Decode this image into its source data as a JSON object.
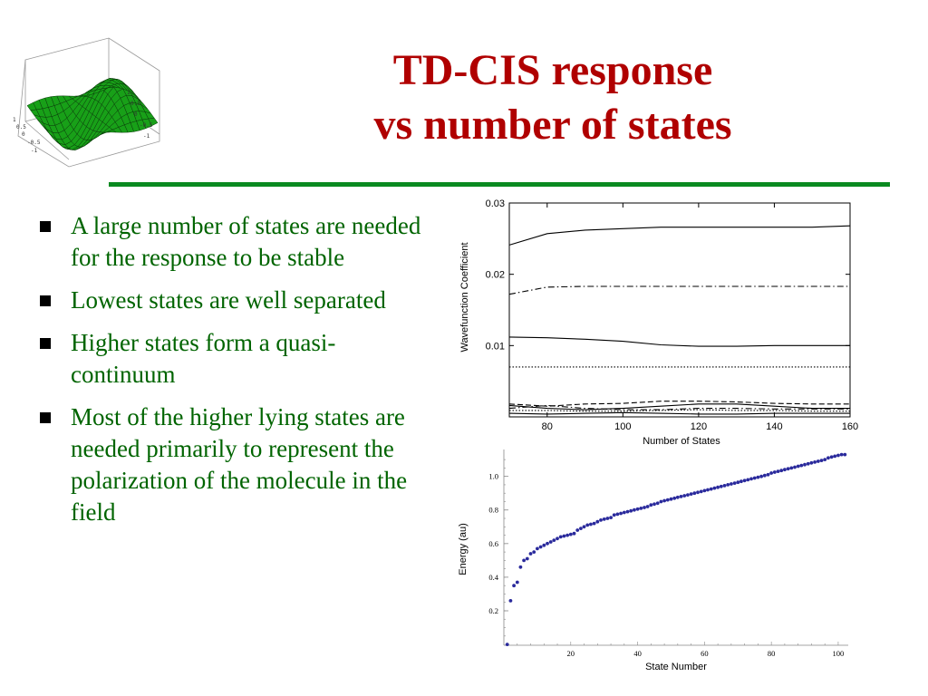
{
  "title": {
    "line1": "TD-CIS response",
    "line2": "vs number of states"
  },
  "bullets": [
    "A large number of states are needed for the response to be stable",
    "Lowest states are well separated",
    "Higher states form a quasi-continuum",
    "Most of the higher lying states are needed primarily to represent the polarization of the molecule in the field"
  ],
  "logo": {
    "ticks": [
      "1",
      "0.5",
      "0",
      "-0.5",
      "-1"
    ],
    "color": "#18a018"
  },
  "chart_data": [
    {
      "type": "line",
      "xlabel": "Number  of  States",
      "ylabel": "Wavefunction Coefficient",
      "xlim": [
        70,
        160
      ],
      "ylim": [
        0,
        0.03
      ],
      "x_ticks": [
        "80",
        "100",
        "120",
        "140",
        "160"
      ],
      "y_ticks": [
        "0.01",
        "0.02",
        "0.03"
      ],
      "x_tick_values": [
        80,
        100,
        120,
        140,
        160
      ],
      "y_tick_values": [
        0.01,
        0.02,
        0.03
      ],
      "x": [
        70,
        80,
        90,
        100,
        110,
        120,
        130,
        140,
        150,
        160
      ],
      "series": [
        {
          "style": "solid",
          "values": [
            0.0241,
            0.0257,
            0.0262,
            0.0264,
            0.0266,
            0.0266,
            0.0266,
            0.0266,
            0.0266,
            0.0268
          ]
        },
        {
          "style": "dashdot",
          "values": [
            0.0172,
            0.0182,
            0.0183,
            0.0183,
            0.0183,
            0.0183,
            0.0183,
            0.0183,
            0.0183,
            0.0183
          ]
        },
        {
          "style": "solid",
          "values": [
            0.0112,
            0.0111,
            0.0109,
            0.0106,
            0.0101,
            0.0099,
            0.0099,
            0.01,
            0.01,
            0.01
          ]
        },
        {
          "style": "dotted",
          "values": [
            0.007,
            0.007,
            0.007,
            0.007,
            0.007,
            0.007,
            0.007,
            0.007,
            0.007,
            0.007
          ]
        },
        {
          "style": "dashed",
          "values": [
            0.0018,
            0.0015,
            0.0018,
            0.0019,
            0.0022,
            0.0022,
            0.0021,
            0.0019,
            0.0018,
            0.0018
          ]
        },
        {
          "style": "solid",
          "values": [
            0.0016,
            0.0012,
            0.001,
            0.0012,
            0.0015,
            0.0018,
            0.0018,
            0.0015,
            0.0012,
            0.0012
          ]
        },
        {
          "style": "dashdot",
          "values": [
            0.0012,
            0.0016,
            0.0012,
            0.001,
            0.001,
            0.0012,
            0.0012,
            0.0011,
            0.0011,
            0.0011
          ]
        },
        {
          "style": "dotted",
          "values": [
            0.0009,
            0.0009,
            0.0008,
            0.0008,
            0.0009,
            0.001,
            0.0009,
            0.0009,
            0.0008,
            0.0008
          ]
        },
        {
          "style": "solid",
          "values": [
            0.0005,
            0.0004,
            0.0005,
            0.0006,
            0.0005,
            0.0004,
            0.0004,
            0.0005,
            0.0005,
            0.0005
          ]
        }
      ]
    },
    {
      "type": "scatter",
      "xlabel": "State Number",
      "ylabel": "Energy (au)",
      "xlim": [
        0,
        103
      ],
      "ylim": [
        -0.005,
        1.16
      ],
      "x_ticks": [
        "20",
        "40",
        "60",
        "80",
        "100"
      ],
      "y_ticks": [
        "0.2",
        "0.4",
        "0.6",
        "0.8",
        "1.0"
      ],
      "x_tick_values": [
        20,
        40,
        60,
        80,
        100
      ],
      "y_tick_values": [
        0.2,
        0.4,
        0.6,
        0.8,
        1.0
      ],
      "marker_color": "#2a2a9c",
      "points_x": [
        1,
        2,
        3,
        4,
        5,
        6,
        7,
        8,
        9,
        10,
        11,
        12,
        13,
        14,
        15,
        16,
        17,
        18,
        19,
        20,
        21,
        22,
        23,
        24,
        25,
        26,
        27,
        28,
        29,
        30,
        31,
        32,
        33,
        34,
        35,
        36,
        37,
        38,
        39,
        40,
        41,
        42,
        43,
        44,
        45,
        46,
        47,
        48,
        49,
        50,
        51,
        52,
        53,
        54,
        55,
        56,
        57,
        58,
        59,
        60,
        61,
        62,
        63,
        64,
        65,
        66,
        67,
        68,
        69,
        70,
        71,
        72,
        73,
        74,
        75,
        76,
        77,
        78,
        79,
        80,
        81,
        82,
        83,
        84,
        85,
        86,
        87,
        88,
        89,
        90,
        91,
        92,
        93,
        94,
        95,
        96,
        97,
        98,
        99,
        100,
        101,
        102
      ],
      "points_y": [
        0.0,
        0.26,
        0.35,
        0.37,
        0.46,
        0.5,
        0.51,
        0.54,
        0.55,
        0.57,
        0.58,
        0.59,
        0.6,
        0.61,
        0.62,
        0.63,
        0.64,
        0.645,
        0.65,
        0.655,
        0.66,
        0.68,
        0.69,
        0.7,
        0.71,
        0.715,
        0.72,
        0.73,
        0.74,
        0.745,
        0.75,
        0.755,
        0.77,
        0.775,
        0.78,
        0.785,
        0.79,
        0.795,
        0.8,
        0.805,
        0.81,
        0.815,
        0.82,
        0.83,
        0.835,
        0.84,
        0.85,
        0.855,
        0.86,
        0.865,
        0.87,
        0.875,
        0.88,
        0.885,
        0.89,
        0.895,
        0.9,
        0.905,
        0.91,
        0.915,
        0.92,
        0.925,
        0.93,
        0.935,
        0.94,
        0.945,
        0.95,
        0.955,
        0.96,
        0.965,
        0.97,
        0.975,
        0.98,
        0.985,
        0.99,
        0.995,
        1.0,
        1.005,
        1.01,
        1.02,
        1.025,
        1.03,
        1.035,
        1.04,
        1.045,
        1.05,
        1.055,
        1.06,
        1.065,
        1.07,
        1.075,
        1.08,
        1.085,
        1.09,
        1.095,
        1.1,
        1.11,
        1.115,
        1.12,
        1.125,
        1.13,
        1.13
      ]
    }
  ]
}
